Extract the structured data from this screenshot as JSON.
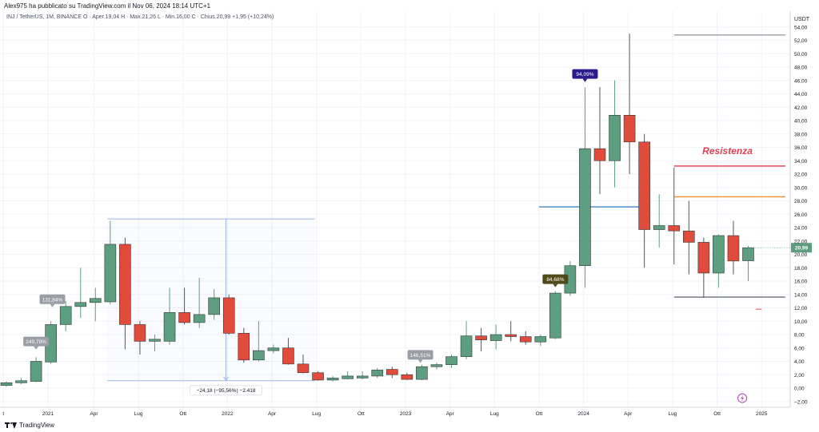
{
  "header": {
    "text": "Alex975 ha pubblicato su TradingView.com il Nov 06, 2024 18:14 UTC+1"
  },
  "ohlc": {
    "symbol": "INJ / TetherUS, 1M, BINANCE",
    "open": "O · Aper.19,04",
    "high": "H · Max.21,26",
    "low": "L · Min.16,00",
    "close": "C · Chius.20,99",
    "change": "+1,95 (+10,24%)"
  },
  "footer": {
    "brand": "TradingView"
  },
  "colors": {
    "up": "#5d9e80",
    "down": "#e04b3c",
    "blue_line": "#3d85c6",
    "orange_line": "#f0902e",
    "red_line": "#d93b4a",
    "label_gray": "#9a9ea6",
    "label_navy": "#2b1b8f",
    "label_olive": "#4f4a1a",
    "measure": "#9fb6e6",
    "last_price": "#5d9e80",
    "resistance_text": "#e04050"
  },
  "chart_data": {
    "type": "candlestick",
    "currency": "USDT",
    "ylim": [
      -2,
      55
    ],
    "yticks": [
      -2,
      0,
      2,
      4,
      6,
      8,
      10,
      12,
      14,
      16,
      18,
      20,
      22,
      24,
      26,
      28,
      30,
      32,
      34,
      36,
      38,
      40,
      42,
      44,
      46,
      48,
      50,
      52,
      54
    ],
    "ytick_labels": [
      "−2,00",
      "0,00",
      "2,00",
      "4,00",
      "6,00",
      "8,00",
      "10,00",
      "12,00",
      "14,00",
      "16,00",
      "18,00",
      "20,00",
      "22,00",
      "24,00",
      "26,00",
      "28,00",
      "30,00",
      "32,00",
      "34,00",
      "36,00",
      "38,00",
      "40,00",
      "42,00",
      "44,00",
      "46,00",
      "48,00",
      "50,00",
      "52,00",
      "54,00"
    ],
    "x_labels": [
      {
        "i": -0.2,
        "label": "t"
      },
      {
        "i": 2.8,
        "label": "2021"
      },
      {
        "i": 5.9,
        "label": "Apr"
      },
      {
        "i": 8.9,
        "label": "Lug"
      },
      {
        "i": 11.9,
        "label": "Ott"
      },
      {
        "i": 14.9,
        "label": "2022"
      },
      {
        "i": 17.9,
        "label": "Apr"
      },
      {
        "i": 20.9,
        "label": "Lug"
      },
      {
        "i": 23.9,
        "label": "Ott"
      },
      {
        "i": 26.9,
        "label": "2023"
      },
      {
        "i": 29.9,
        "label": "Apr"
      },
      {
        "i": 32.9,
        "label": "Lug"
      },
      {
        "i": 35.9,
        "label": "Ott"
      },
      {
        "i": 38.9,
        "label": "2024"
      },
      {
        "i": 41.9,
        "label": "Apr"
      },
      {
        "i": 44.9,
        "label": "Lug"
      },
      {
        "i": 47.9,
        "label": "Ott"
      },
      {
        "i": 50.9,
        "label": "2025"
      }
    ],
    "candles": [
      {
        "o": 0.4,
        "h": 1.0,
        "l": 0.2,
        "c": 0.8
      },
      {
        "o": 0.8,
        "h": 1.5,
        "l": 0.6,
        "c": 1.1
      },
      {
        "o": 1.0,
        "h": 4.6,
        "l": 0.9,
        "c": 4.0
      },
      {
        "o": 3.9,
        "h": 10.0,
        "l": 3.6,
        "c": 9.5
      },
      {
        "o": 9.5,
        "h": 13.0,
        "l": 8.5,
        "c": 12.2
      },
      {
        "o": 12.2,
        "h": 18.0,
        "l": 10.5,
        "c": 12.8
      },
      {
        "o": 12.8,
        "h": 15.0,
        "l": 10.0,
        "c": 13.4
      },
      {
        "o": 12.9,
        "h": 25.0,
        "l": 12.5,
        "c": 21.5
      },
      {
        "o": 21.5,
        "h": 22.5,
        "l": 5.8,
        "c": 9.5
      },
      {
        "o": 9.5,
        "h": 10.0,
        "l": 5.0,
        "c": 7.0
      },
      {
        "o": 7.0,
        "h": 8.0,
        "l": 5.5,
        "c": 7.3
      },
      {
        "o": 7.0,
        "h": 15.0,
        "l": 6.5,
        "c": 11.3
      },
      {
        "o": 11.3,
        "h": 15.0,
        "l": 9.5,
        "c": 9.8
      },
      {
        "o": 9.8,
        "h": 16.5,
        "l": 9.0,
        "c": 11.0
      },
      {
        "o": 11.0,
        "h": 14.8,
        "l": 10.2,
        "c": 13.5
      },
      {
        "o": 13.5,
        "h": 14.0,
        "l": 8.0,
        "c": 8.2
      },
      {
        "o": 8.2,
        "h": 9.0,
        "l": 3.8,
        "c": 4.2
      },
      {
        "o": 4.2,
        "h": 10.0,
        "l": 4.0,
        "c": 5.6
      },
      {
        "o": 5.6,
        "h": 6.5,
        "l": 5.2,
        "c": 6.0
      },
      {
        "o": 6.0,
        "h": 7.5,
        "l": 3.5,
        "c": 3.6
      },
      {
        "o": 3.6,
        "h": 5.0,
        "l": 2.2,
        "c": 2.3
      },
      {
        "o": 2.3,
        "h": 2.5,
        "l": 1.1,
        "c": 1.2
      },
      {
        "o": 1.2,
        "h": 1.8,
        "l": 1.0,
        "c": 1.5
      },
      {
        "o": 1.4,
        "h": 2.5,
        "l": 1.3,
        "c": 1.8
      },
      {
        "o": 1.5,
        "h": 2.5,
        "l": 1.3,
        "c": 1.8
      },
      {
        "o": 1.8,
        "h": 3.0,
        "l": 1.5,
        "c": 2.7
      },
      {
        "o": 2.8,
        "h": 3.2,
        "l": 1.5,
        "c": 2.0
      },
      {
        "o": 2.0,
        "h": 2.3,
        "l": 1.2,
        "c": 1.3
      },
      {
        "o": 1.3,
        "h": 3.5,
        "l": 1.2,
        "c": 3.2
      },
      {
        "o": 3.2,
        "h": 3.8,
        "l": 2.8,
        "c": 3.5
      },
      {
        "o": 3.5,
        "h": 5.0,
        "l": 3.0,
        "c": 4.7
      },
      {
        "o": 4.7,
        "h": 10.0,
        "l": 4.3,
        "c": 7.8
      },
      {
        "o": 7.8,
        "h": 9.0,
        "l": 5.5,
        "c": 7.2
      },
      {
        "o": 7.1,
        "h": 9.5,
        "l": 5.8,
        "c": 8.0
      },
      {
        "o": 8.0,
        "h": 10.0,
        "l": 7.0,
        "c": 7.7
      },
      {
        "o": 7.7,
        "h": 8.5,
        "l": 6.5,
        "c": 6.9
      },
      {
        "o": 6.9,
        "h": 8.0,
        "l": 6.3,
        "c": 7.7
      },
      {
        "o": 7.5,
        "h": 14.5,
        "l": 7.3,
        "c": 14.2
      },
      {
        "o": 14.2,
        "h": 19.0,
        "l": 13.8,
        "c": 18.3
      },
      {
        "o": 18.3,
        "h": 45.0,
        "l": 15.0,
        "c": 35.8
      },
      {
        "o": 35.8,
        "h": 45.0,
        "l": 29.0,
        "c": 34.0
      },
      {
        "o": 34.0,
        "h": 46.0,
        "l": 30.0,
        "c": 40.8
      },
      {
        "o": 40.8,
        "h": 53.0,
        "l": 32.0,
        "c": 36.8
      },
      {
        "o": 36.8,
        "h": 38.0,
        "l": 18.0,
        "c": 23.7
      },
      {
        "o": 23.7,
        "h": 29.0,
        "l": 21.0,
        "c": 24.3
      },
      {
        "o": 24.3,
        "h": 33.0,
        "l": 18.5,
        "c": 23.5
      },
      {
        "o": 23.5,
        "h": 28.0,
        "l": 17.0,
        "c": 21.8
      },
      {
        "o": 21.8,
        "h": 22.5,
        "l": 13.5,
        "c": 17.2
      },
      {
        "o": 17.2,
        "h": 23.0,
        "l": 15.0,
        "c": 22.8
      },
      {
        "o": 22.8,
        "h": 25.0,
        "l": 17.0,
        "c": 19.0
      },
      {
        "o": 19.04,
        "h": 21.26,
        "l": 16.0,
        "c": 20.99
      }
    ],
    "levels": [
      {
        "y": 52.8,
        "from": 45.0,
        "to": 52.5,
        "color": "#9a9ea6",
        "name": "top-gray"
      },
      {
        "y": 33.2,
        "from": 45.0,
        "to": 52.5,
        "color": "#d93b4a",
        "name": "resistance-line"
      },
      {
        "y": 28.6,
        "from": 45.0,
        "to": 52.5,
        "color": "#f0902e",
        "name": "orange-line"
      },
      {
        "y": 27.1,
        "from": 35.9,
        "to": 43.3,
        "color": "#3d85c6",
        "name": "blue-line"
      },
      {
        "y": 13.6,
        "from": 45.0,
        "to": 52.5,
        "color": "#6b6f78",
        "name": "bottom-gray"
      }
    ],
    "annotations": [
      {
        "i": 2.0,
        "y": 6.5,
        "text": "249,79%",
        "style": "gray"
      },
      {
        "i": 3.1,
        "y": 12.8,
        "text": "131,84%",
        "style": "gray"
      },
      {
        "i": 27.9,
        "y": 4.5,
        "text": "146,51%",
        "style": "gray"
      },
      {
        "i": 37.0,
        "y": 15.8,
        "text": "84,68%",
        "style": "olive"
      },
      {
        "i": 39.0,
        "y": 46.5,
        "text": "94,09%",
        "style": "navy"
      }
    ],
    "measure": {
      "top": 25.3,
      "bottom": 1.1,
      "i_start": 6.8,
      "i_end": 20.8,
      "i_arrow": 14.8,
      "text": "−24,18 (−95,56%) −2.418"
    },
    "resistance_label": "Resistenza",
    "last_price": 20.99,
    "last_price_label": "20,99"
  }
}
